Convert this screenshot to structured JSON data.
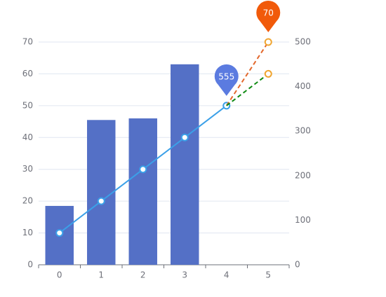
{
  "chart_data": {
    "type": "bar",
    "categories": [
      "0",
      "1",
      "2",
      "3",
      "4",
      "5"
    ],
    "series": [
      {
        "type": "bar",
        "color": "#5470c6",
        "values": [
          18.5,
          45.5,
          46,
          63,
          null,
          null
        ]
      },
      {
        "type": "line",
        "color": "#3ba0e8",
        "values": [
          10,
          20,
          30,
          40,
          50,
          null
        ]
      },
      {
        "type": "line",
        "dashed": true,
        "color": "#e3672b",
        "point_color": "#f0a530",
        "values": [
          null,
          null,
          null,
          null,
          50,
          70
        ]
      },
      {
        "type": "line",
        "dashed": true,
        "color": "#0e8a12",
        "point_color": "#f0a530",
        "values": [
          null,
          null,
          null,
          null,
          50,
          60
        ]
      }
    ],
    "annotations": [
      {
        "text": "555",
        "x": 4,
        "y": 50,
        "color": "#5b7be0"
      },
      {
        "text": "70",
        "x": 5,
        "y": 70,
        "color": "#f15a0a"
      }
    ],
    "ylim": [
      0,
      70
    ],
    "yticks": [
      0,
      10,
      20,
      30,
      40,
      50,
      60,
      70
    ],
    "y2lim": [
      0,
      500
    ],
    "y2ticks": [
      0,
      100,
      200,
      300,
      400,
      500
    ],
    "grid": true
  }
}
